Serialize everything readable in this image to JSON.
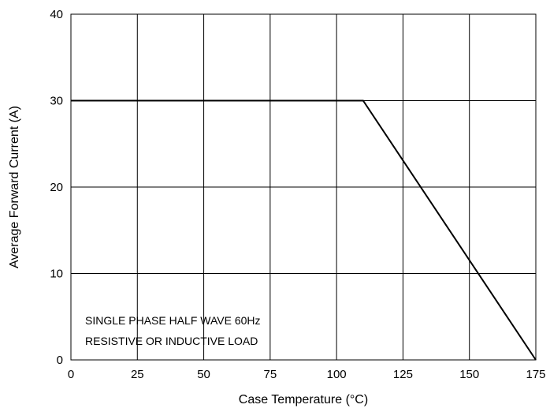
{
  "chart_data": {
    "type": "line",
    "title": "",
    "xlabel": "Case Temperature (°C)",
    "ylabel": "Average Forward Current (A)",
    "xlim": [
      0,
      175
    ],
    "ylim": [
      0,
      40
    ],
    "x_ticks": [
      0,
      25,
      50,
      75,
      100,
      125,
      150,
      175
    ],
    "y_ticks": [
      0,
      10,
      20,
      30,
      40
    ],
    "x_tick_labels": [
      "0",
      "25",
      "50",
      "75",
      "100",
      "125",
      "150",
      "175"
    ],
    "y_tick_labels": [
      "0",
      "10",
      "20",
      "30",
      "40"
    ],
    "grid": true,
    "series": [
      {
        "x": [
          0,
          110,
          175
        ],
        "y": [
          30,
          30,
          0
        ]
      }
    ],
    "annotations": [
      "SINGLE PHASE HALF WAVE 60Hz",
      "RESISTIVE OR INDUCTIVE LOAD"
    ],
    "line_color": "#000000",
    "grid_color": "#000000"
  }
}
